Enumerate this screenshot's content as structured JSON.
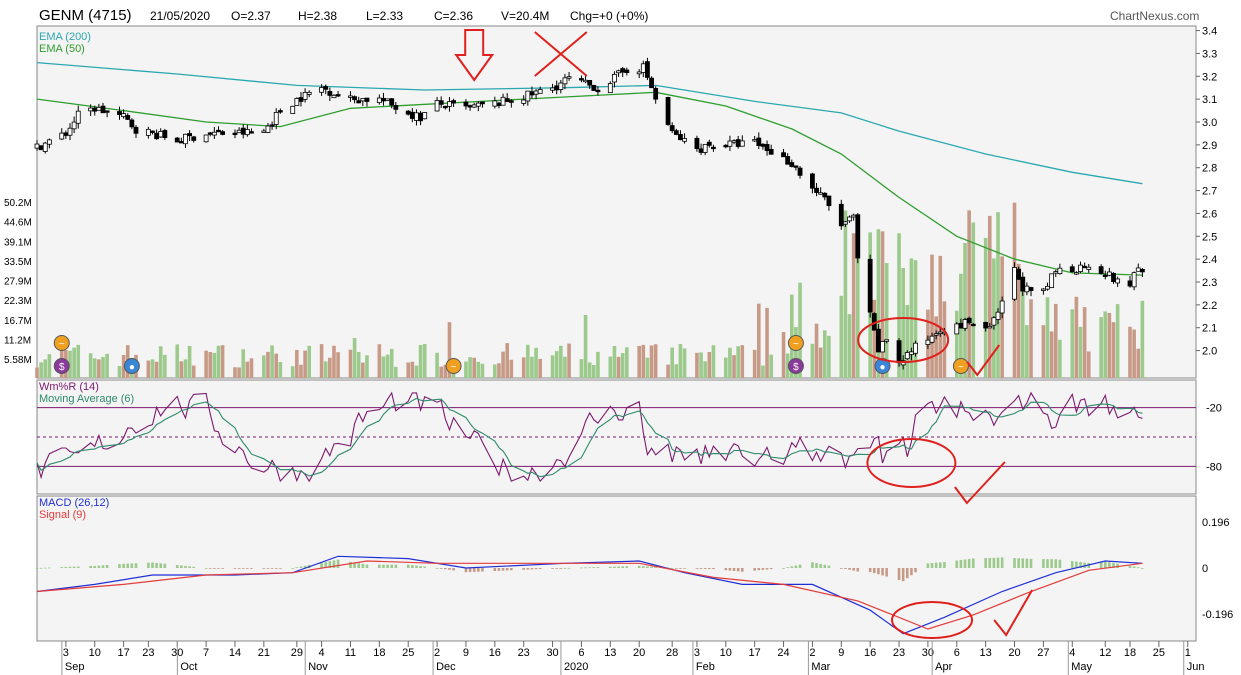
{
  "header": {
    "ticker": "GENM (4715)",
    "date": "21/05/2020",
    "open": "O=2.37",
    "high": "H=2.38",
    "low": "L=2.33",
    "close": "C=2.36",
    "volume": "V=20.4M",
    "change": "Chg=+0 (+0%)",
    "brand": "ChartNexus.com"
  },
  "colors": {
    "up": "#ffffff",
    "down": "#000000",
    "ema200": "#2aa8b0",
    "ema50": "#2e9e2e",
    "vol_up": "#9cc98c",
    "vol_down": "#c79a88",
    "wmr": "#7b1a6e",
    "wmr_ma": "#2e8b6a",
    "macd": "#1f2fd6",
    "signal": "#e33b3b",
    "annotation": "#e0201c"
  },
  "chart_data": [
    {
      "type": "candlestick",
      "title": "GENM (4715)",
      "legend": [
        "EMA (200)",
        "EMA (50)"
      ],
      "ylim": [
        1.88,
        3.42
      ],
      "y_ticks": [
        "3.4",
        "3.3",
        "3.2",
        "3.1",
        "3.0",
        "2.9",
        "2.8",
        "2.7",
        "2.6",
        "2.5",
        "2.4",
        "2.3",
        "2.2",
        "2.1",
        "2.0"
      ],
      "volume_ticks": [
        "50.2M",
        "44.6M",
        "39.1M",
        "33.5M",
        "27.9M",
        "22.3M",
        "16.7M",
        "11.2M",
        "5.58M"
      ],
      "x_ticks": [
        {
          "d": "2019-09-03",
          "l": "3"
        },
        {
          "d": "2019-09-10",
          "l": "10"
        },
        {
          "d": "2019-09-17",
          "l": "17"
        },
        {
          "d": "2019-09-23",
          "l": "23"
        },
        {
          "d": "2019-09-30",
          "l": "30"
        },
        {
          "d": "2019-10-07",
          "l": "7"
        },
        {
          "d": "2019-10-14",
          "l": "14"
        },
        {
          "d": "2019-10-21",
          "l": "21"
        },
        {
          "d": "2019-10-29",
          "l": "29"
        },
        {
          "d": "2019-11-04",
          "l": "4"
        },
        {
          "d": "2019-11-11",
          "l": "11"
        },
        {
          "d": "2019-11-18",
          "l": "18"
        },
        {
          "d": "2019-11-25",
          "l": "25"
        },
        {
          "d": "2019-12-02",
          "l": "2"
        },
        {
          "d": "2019-12-09",
          "l": "9"
        },
        {
          "d": "2019-12-16",
          "l": "16"
        },
        {
          "d": "2019-12-23",
          "l": "23"
        },
        {
          "d": "2019-12-30",
          "l": "30"
        },
        {
          "d": "2020-01-06",
          "l": "6"
        },
        {
          "d": "2020-01-13",
          "l": "13"
        },
        {
          "d": "2020-01-20",
          "l": "20"
        },
        {
          "d": "2020-01-28",
          "l": "28"
        },
        {
          "d": "2020-02-03",
          "l": "3"
        },
        {
          "d": "2020-02-10",
          "l": "10"
        },
        {
          "d": "2020-02-17",
          "l": "17"
        },
        {
          "d": "2020-02-24",
          "l": "24"
        },
        {
          "d": "2020-03-02",
          "l": "2"
        },
        {
          "d": "2020-03-09",
          "l": "9"
        },
        {
          "d": "2020-03-16",
          "l": "16"
        },
        {
          "d": "2020-03-23",
          "l": "23"
        },
        {
          "d": "2020-03-30",
          "l": "30"
        },
        {
          "d": "2020-04-06",
          "l": "6"
        },
        {
          "d": "2020-04-13",
          "l": "13"
        },
        {
          "d": "2020-04-20",
          "l": "20"
        },
        {
          "d": "2020-04-27",
          "l": "27"
        },
        {
          "d": "2020-05-04",
          "l": "4"
        },
        {
          "d": "2020-05-12",
          "l": "12"
        },
        {
          "d": "2020-05-18",
          "l": "18"
        },
        {
          "d": "2020-05-25",
          "l": "25"
        },
        {
          "d": "2020-06-01",
          "l": "1"
        }
      ],
      "month_labels": [
        {
          "d": "2019-09-03",
          "l": "Sep"
        },
        {
          "d": "2019-10-01",
          "l": "Oct"
        },
        {
          "d": "2019-11-01",
          "l": "Nov"
        },
        {
          "d": "2019-12-02",
          "l": "Dec"
        },
        {
          "d": "2020-01-02",
          "l": "2020"
        },
        {
          "d": "2020-02-03",
          "l": "Feb"
        },
        {
          "d": "2020-03-02",
          "l": "Mar"
        },
        {
          "d": "2020-04-01",
          "l": "Apr"
        },
        {
          "d": "2020-05-04",
          "l": "May"
        },
        {
          "d": "2020-06-01",
          "l": "Jun"
        }
      ],
      "price_path": [
        [
          "2019-08-27",
          2.89
        ],
        [
          "2019-09-03",
          2.95
        ],
        [
          "2019-09-06",
          3.03
        ],
        [
          "2019-09-10",
          3.06
        ],
        [
          "2019-09-17",
          3.02
        ],
        [
          "2019-09-20",
          2.97
        ],
        [
          "2019-09-30",
          2.92
        ],
        [
          "2019-10-07",
          2.95
        ],
        [
          "2019-10-14",
          2.95
        ],
        [
          "2019-10-21",
          2.96
        ],
        [
          "2019-10-25",
          3.05
        ],
        [
          "2019-10-29",
          3.1
        ],
        [
          "2019-11-04",
          3.15
        ],
        [
          "2019-11-11",
          3.1
        ],
        [
          "2019-11-18",
          3.1
        ],
        [
          "2019-11-25",
          3.04
        ],
        [
          "2019-11-28",
          3.02
        ],
        [
          "2019-12-02",
          3.08
        ],
        [
          "2019-12-09",
          3.06
        ],
        [
          "2019-12-16",
          3.08
        ],
        [
          "2019-12-23",
          3.11
        ],
        [
          "2019-12-30",
          3.15
        ],
        [
          "2020-01-03",
          3.19
        ],
        [
          "2020-01-06",
          3.17
        ],
        [
          "2020-01-10",
          3.15
        ],
        [
          "2020-01-13",
          3.18
        ],
        [
          "2020-01-17",
          3.23
        ],
        [
          "2020-01-21",
          3.24
        ],
        [
          "2020-01-23",
          3.15
        ],
        [
          "2020-01-24",
          3.1
        ],
        [
          "2020-01-28",
          2.95
        ],
        [
          "2020-02-03",
          2.88
        ],
        [
          "2020-02-06",
          2.9
        ],
        [
          "2020-02-10",
          2.9
        ],
        [
          "2020-02-17",
          2.91
        ],
        [
          "2020-02-21",
          2.87
        ],
        [
          "2020-02-26",
          2.82
        ],
        [
          "2020-03-02",
          2.71
        ],
        [
          "2020-03-05",
          2.66
        ],
        [
          "2020-03-09",
          2.55
        ],
        [
          "2020-03-12",
          2.58
        ],
        [
          "2020-03-13",
          2.4
        ],
        [
          "2020-03-16",
          2.15
        ],
        [
          "2020-03-18",
          2.0
        ],
        [
          "2020-03-20",
          2.05
        ],
        [
          "2020-03-23",
          1.95
        ],
        [
          "2020-03-26",
          2.0
        ],
        [
          "2020-03-30",
          2.05
        ],
        [
          "2020-04-02",
          2.1
        ],
        [
          "2020-04-06",
          2.1
        ],
        [
          "2020-04-09",
          2.13
        ],
        [
          "2020-04-13",
          2.08
        ],
        [
          "2020-04-16",
          2.15
        ],
        [
          "2020-04-17",
          2.22
        ],
        [
          "2020-04-20",
          2.35
        ],
        [
          "2020-04-22",
          2.28
        ],
        [
          "2020-04-24",
          2.25
        ],
        [
          "2020-04-27",
          2.25
        ],
        [
          "2020-04-30",
          2.35
        ],
        [
          "2020-05-05",
          2.36
        ],
        [
          "2020-05-08",
          2.38
        ],
        [
          "2020-05-12",
          2.34
        ],
        [
          "2020-05-15",
          2.3
        ],
        [
          "2020-05-18",
          2.28
        ],
        [
          "2020-05-19",
          2.35
        ],
        [
          "2020-05-21",
          2.36
        ]
      ],
      "ema200_path": [
        [
          "2019-08-27",
          3.26
        ],
        [
          "2019-09-30",
          3.21
        ],
        [
          "2019-10-29",
          3.16
        ],
        [
          "2019-11-29",
          3.14
        ],
        [
          "2020-01-02",
          3.15
        ],
        [
          "2020-01-24",
          3.16
        ],
        [
          "2020-02-17",
          3.09
        ],
        [
          "2020-03-09",
          3.04
        ],
        [
          "2020-03-23",
          2.96
        ],
        [
          "2020-04-13",
          2.86
        ],
        [
          "2020-05-04",
          2.78
        ],
        [
          "2020-05-21",
          2.73
        ]
      ],
      "ema50_path": [
        [
          "2019-08-27",
          3.1
        ],
        [
          "2019-09-17",
          3.05
        ],
        [
          "2019-10-07",
          3.0
        ],
        [
          "2019-10-25",
          2.98
        ],
        [
          "2019-11-11",
          3.06
        ],
        [
          "2019-12-02",
          3.08
        ],
        [
          "2019-12-23",
          3.1
        ],
        [
          "2020-01-13",
          3.12
        ],
        [
          "2020-01-24",
          3.13
        ],
        [
          "2020-02-10",
          3.07
        ],
        [
          "2020-02-26",
          2.97
        ],
        [
          "2020-03-09",
          2.86
        ],
        [
          "2020-03-23",
          2.67
        ],
        [
          "2020-04-06",
          2.5
        ],
        [
          "2020-04-20",
          2.4
        ],
        [
          "2020-05-04",
          2.34
        ],
        [
          "2020-05-21",
          2.33
        ]
      ]
    },
    {
      "type": "line",
      "legend": [
        "Wm%R (14)",
        "Moving Average (6)"
      ],
      "ylim": [
        -100,
        0
      ],
      "y_ticks": [
        "-20",
        "-80"
      ],
      "levels": [
        -20,
        -50,
        -80
      ]
    },
    {
      "type": "line",
      "legend": [
        "MACD (26,12)",
        "Signal (9)"
      ],
      "y_ticks": [
        "0.196",
        "0",
        "-0.196"
      ],
      "macd_path": [
        [
          "2019-08-27",
          -0.1
        ],
        [
          "2019-09-10",
          -0.07
        ],
        [
          "2019-09-24",
          -0.03
        ],
        [
          "2019-10-14",
          -0.03
        ],
        [
          "2019-10-28",
          -0.02
        ],
        [
          "2019-11-08",
          0.05
        ],
        [
          "2019-11-25",
          0.04
        ],
        [
          "2019-12-09",
          0.0
        ],
        [
          "2020-01-02",
          0.02
        ],
        [
          "2020-01-20",
          0.03
        ],
        [
          "2020-01-31",
          -0.02
        ],
        [
          "2020-02-14",
          -0.07
        ],
        [
          "2020-03-02",
          -0.07
        ],
        [
          "2020-03-16",
          -0.18
        ],
        [
          "2020-03-24",
          -0.28
        ],
        [
          "2020-04-03",
          -0.21
        ],
        [
          "2020-04-17",
          -0.1
        ],
        [
          "2020-04-30",
          -0.02
        ],
        [
          "2020-05-12",
          0.03
        ],
        [
          "2020-05-21",
          0.02
        ]
      ],
      "signal_path": [
        [
          "2019-08-27",
          -0.1
        ],
        [
          "2019-09-17",
          -0.07
        ],
        [
          "2019-10-07",
          -0.03
        ],
        [
          "2019-10-28",
          -0.02
        ],
        [
          "2019-11-15",
          0.03
        ],
        [
          "2019-12-02",
          0.02
        ],
        [
          "2020-01-02",
          0.02
        ],
        [
          "2020-01-20",
          0.02
        ],
        [
          "2020-02-07",
          -0.04
        ],
        [
          "2020-02-24",
          -0.07
        ],
        [
          "2020-03-13",
          -0.14
        ],
        [
          "2020-03-30",
          -0.26
        ],
        [
          "2020-04-10",
          -0.2
        ],
        [
          "2020-04-24",
          -0.1
        ],
        [
          "2020-05-08",
          -0.01
        ],
        [
          "2020-05-21",
          0.02
        ]
      ]
    }
  ]
}
